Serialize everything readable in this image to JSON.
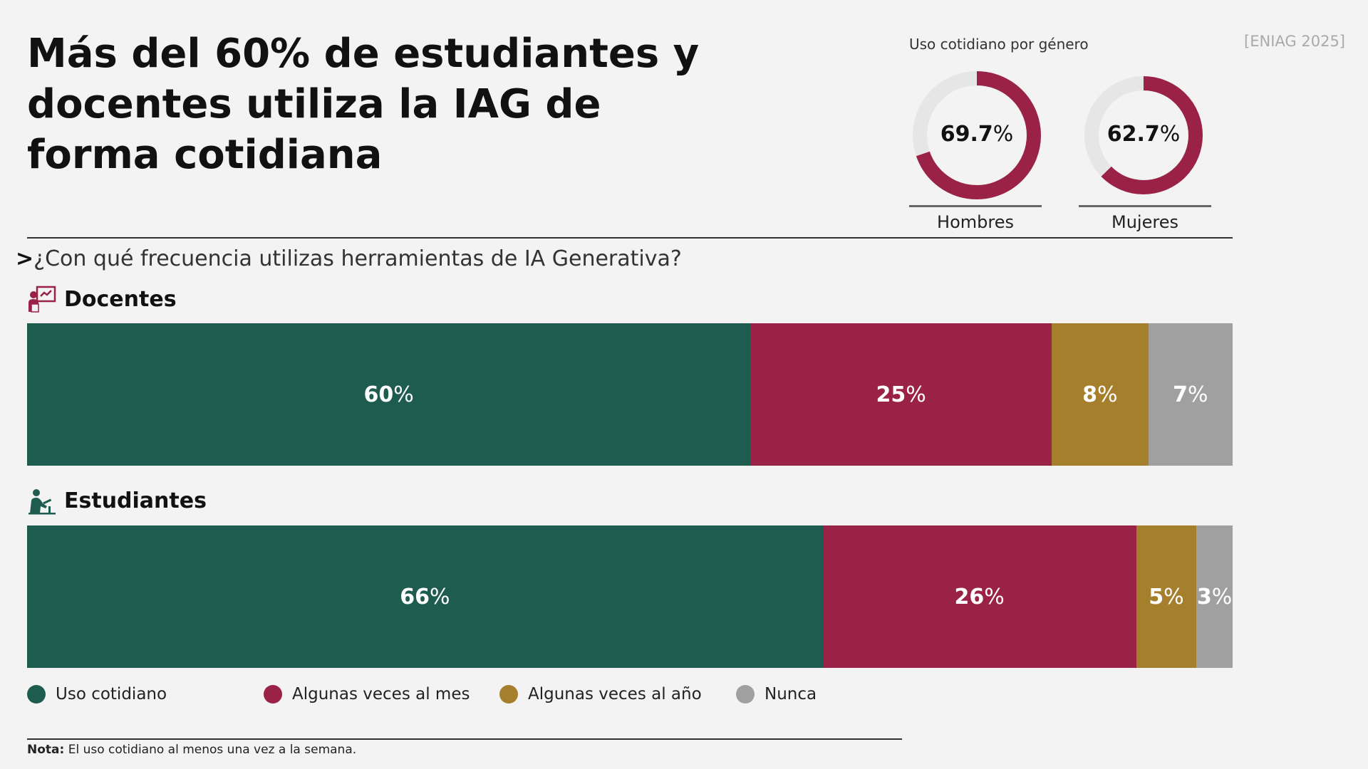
{
  "title": "Más del 60% de estudiantes y docentes utiliza la IAG de forma cotidiana",
  "source": "[ENIAG 2025]",
  "colors": {
    "uso_cotidiano": "#1f5c50",
    "algunas_mes": "#9b2247",
    "algunas_anio": "#a57f2c",
    "nunca": "#a0a0a0",
    "donut_track": "#e6e6e6"
  },
  "donuts": {
    "title": "Uso cotidiano por género",
    "items": [
      {
        "value_num": "69.7",
        "value": 69.7,
        "label": "Hombres"
      },
      {
        "value_num": "62.7",
        "value": 62.7,
        "label": "Mujeres"
      }
    ]
  },
  "question": {
    "caret": ">",
    "text": "¿Con qué frecuencia utilizas herramientas de IA Generativa?"
  },
  "groups": {
    "docentes": {
      "label": "Docentes",
      "icon": "teacher-icon"
    },
    "estudiantes": {
      "label": "Estudiantes",
      "icon": "student-icon"
    }
  },
  "percent_sign": "%",
  "legend": [
    {
      "label": "Uso cotidiano",
      "color": "#1f5c50"
    },
    {
      "label": "Algunas veces al mes",
      "color": "#9b2247"
    },
    {
      "label": "Algunas veces al año",
      "color": "#a57f2c"
    },
    {
      "label": "Nunca",
      "color": "#a0a0a0"
    }
  ],
  "note": {
    "label": "Nota:",
    "text": " El uso cotidiano al menos una vez a la semana."
  },
  "chart_data": [
    {
      "type": "bar",
      "stacked": true,
      "orientation": "horizontal",
      "title": "¿Con qué frecuencia utilizas herramientas de IA Generativa?",
      "categories": [
        "Docentes",
        "Estudiantes"
      ],
      "series": [
        {
          "name": "Uso cotidiano",
          "values": [
            60,
            66
          ]
        },
        {
          "name": "Algunas veces al mes",
          "values": [
            25,
            26
          ]
        },
        {
          "name": "Algunas veces al año",
          "values": [
            8,
            5
          ]
        },
        {
          "name": "Nunca",
          "values": [
            7,
            3
          ]
        }
      ],
      "unit": "%",
      "legend": "bottom"
    },
    {
      "type": "pie",
      "variant": "donut",
      "title": "Uso cotidiano por género",
      "categories": [
        "Hombres",
        "Mujeres"
      ],
      "values": [
        69.7,
        62.7
      ],
      "unit": "%"
    }
  ]
}
